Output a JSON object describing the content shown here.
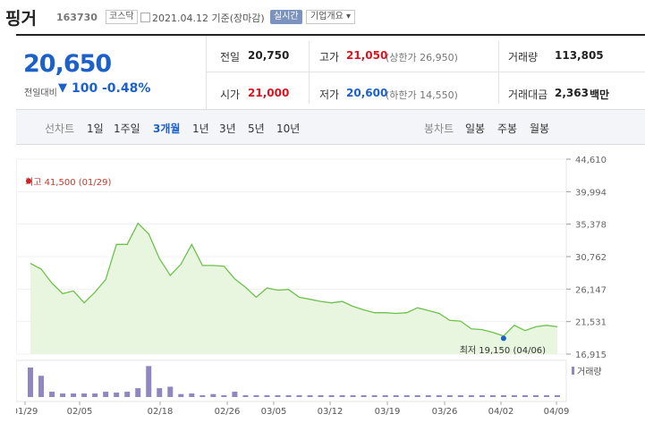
{
  "header": {
    "title": "핑거",
    "code": "163730",
    "market": "코스닥",
    "date": "2021.04.12 기준(장마감)",
    "realtime_label": "실시간",
    "company_info_label": "기업개요 ▾"
  },
  "price": {
    "current": "20,650",
    "change_label": "전일대비",
    "change_arrow": "▼",
    "change_value": "100",
    "change_pct": "-0.48%"
  },
  "stats": {
    "prev_label": "전일",
    "prev_value": "20,750",
    "high_label": "고가",
    "high_value": "21,050",
    "upper_limit": "(상한가 26,950)",
    "volume_label": "거래량",
    "volume_value": "113,805",
    "open_label": "시가",
    "open_value": "21,000",
    "low_label": "저가",
    "low_value": "20,600",
    "lower_limit": "(하한가 14,550)",
    "amount_label": "거래대금",
    "amount_value": "2,363",
    "amount_unit": "백만"
  },
  "tabs": {
    "line_label": "선차트",
    "periods": [
      "1일",
      "1주일",
      "3개월",
      "1년",
      "3년",
      "5년",
      "10년"
    ],
    "selected": "3개월",
    "candle_label": "봉차트",
    "candles": [
      "일봉",
      "주봉",
      "월봉"
    ]
  },
  "colors": {
    "accent_blue": "#1c60c9",
    "up_red": "#e0111e",
    "line_green": "#6cc24a",
    "area_green": "#e8f6df",
    "volume_purple": "#9186c4"
  },
  "chart_data": {
    "type": "area",
    "x_tick_labels": [
      "01/29",
      "02/05",
      "02/18",
      "02/26",
      "03/05",
      "03/12",
      "03/19",
      "03/26",
      "04/02",
      "04/09"
    ],
    "y_ticks": [
      44610,
      39994,
      35378,
      30762,
      26147,
      21531,
      16915
    ],
    "ylim": [
      16915,
      44610
    ],
    "price": [
      29800,
      29000,
      27000,
      25500,
      25900,
      24200,
      25700,
      27500,
      32500,
      32500,
      35500,
      34000,
      30500,
      28100,
      29700,
      32500,
      29500,
      29500,
      29400,
      27600,
      26400,
      25000,
      26300,
      26000,
      26100,
      25000,
      24700,
      24400,
      24200,
      24400,
      23700,
      23200,
      22800,
      22800,
      22700,
      22800,
      23500,
      23100,
      22700,
      21700,
      21600,
      20500,
      20400,
      20000,
      19500,
      21000,
      20250,
      20800,
      21000,
      20800
    ],
    "volume": [
      1.0,
      0.72,
      0.18,
      0.12,
      0.12,
      0.12,
      0.12,
      0.18,
      0.15,
      0.18,
      0.3,
      1.05,
      0.3,
      0.35,
      0.1,
      0.12,
      0.06,
      0.1,
      0.06,
      0.18,
      0.06,
      0.06,
      0.05,
      0.05,
      0.05,
      0.05,
      0.05,
      0.05,
      0.05,
      0.05,
      0.05,
      0.05,
      0.04,
      0.05,
      0.04,
      0.05,
      0.04,
      0.04,
      0.05,
      0.04,
      0.05,
      0.04,
      0.05,
      0.04,
      0.05,
      0.04,
      0.05,
      0.04,
      0.04,
      0.04
    ],
    "high_annotation": {
      "label": "최고",
      "value": "41,500",
      "date": "(01/29)"
    },
    "low_annotation": {
      "label": "최저",
      "value": "19,150",
      "date": "(04/06)"
    },
    "volume_legend": "거래량"
  }
}
